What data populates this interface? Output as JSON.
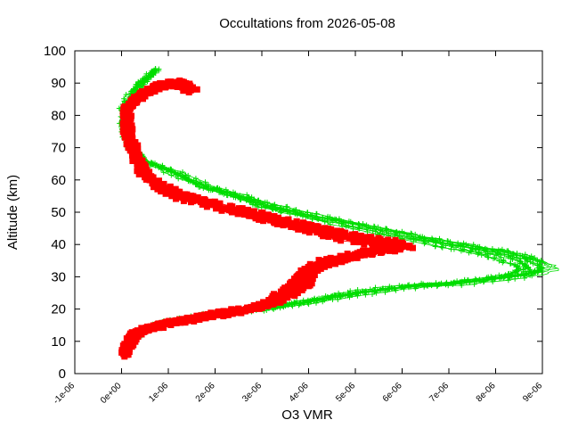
{
  "chart_data": {
    "type": "line",
    "title": "Occultations from 2026-05-08",
    "xlabel": "O3 VMR",
    "ylabel": "Altitude (km)",
    "xlim": [
      -1e-06,
      9e-06
    ],
    "ylim": [
      0,
      100
    ],
    "x_ticks": [
      "-1e-06",
      "0e+00",
      "1e-06",
      "2e-06",
      "3e-06",
      "4e-06",
      "5e-06",
      "6e-06",
      "7e-06",
      "8e-06",
      "9e-06"
    ],
    "y_ticks": [
      "0",
      "10",
      "20",
      "30",
      "40",
      "50",
      "60",
      "70",
      "80",
      "90",
      "100"
    ],
    "grid": false,
    "series": [
      {
        "color": "#00dd00",
        "marker": "plus",
        "profile": [
          [
            7e-07,
            94
          ],
          [
            4e-07,
            90
          ],
          [
            2e-07,
            86
          ],
          [
            5e-08,
            82
          ],
          [
            5e-08,
            78
          ],
          [
            1e-07,
            74
          ],
          [
            2e-07,
            70
          ],
          [
            5e-07,
            66
          ],
          [
            1.2e-06,
            62
          ],
          [
            1.8e-06,
            58
          ],
          [
            2.5e-06,
            55
          ],
          [
            3.1e-06,
            52
          ],
          [
            4e-06,
            49
          ],
          [
            5e-06,
            46
          ],
          [
            6e-06,
            43
          ],
          [
            7e-06,
            40
          ],
          [
            7.8e-06,
            38
          ],
          [
            8.4e-06,
            36
          ],
          [
            8.8e-06,
            34
          ],
          [
            8.9e-06,
            32.5
          ],
          [
            8.6e-06,
            31
          ],
          [
            7.9e-06,
            29.5
          ],
          [
            7e-06,
            28
          ],
          [
            6e-06,
            27
          ],
          [
            5.2e-06,
            25.5
          ],
          [
            4.6e-06,
            24
          ],
          [
            4e-06,
            22.5
          ],
          [
            3.4e-06,
            21
          ],
          [
            2.8e-06,
            20
          ],
          [
            2e-06,
            18.5
          ],
          [
            1.3e-06,
            17
          ],
          [
            8e-07,
            15.5
          ],
          [
            4e-07,
            13
          ],
          [
            2e-07,
            10
          ],
          [
            1e-07,
            7
          ]
        ],
        "profile_count": 10
      },
      {
        "color": "#ff0000",
        "marker": "square",
        "profile": [
          [
            1.5e-06,
            88
          ],
          [
            1.2e-06,
            90
          ],
          [
            8e-07,
            89
          ],
          [
            4e-07,
            86
          ],
          [
            1.5e-07,
            82
          ],
          [
            1e-07,
            78
          ],
          [
            1.5e-07,
            74
          ],
          [
            2.5e-07,
            70
          ],
          [
            3.5e-07,
            66
          ],
          [
            5e-07,
            62
          ],
          [
            8e-07,
            58
          ],
          [
            1.3e-06,
            55
          ],
          [
            1.9e-06,
            52.5
          ],
          [
            2.6e-06,
            50
          ],
          [
            3.2e-06,
            48
          ],
          [
            3.8e-06,
            46
          ],
          [
            4.4e-06,
            44
          ],
          [
            5e-06,
            42
          ],
          [
            5.7e-06,
            40.5
          ],
          [
            6e-06,
            39
          ],
          [
            5.2e-06,
            37
          ],
          [
            4.6e-06,
            35
          ],
          [
            4.2e-06,
            33
          ],
          [
            4e-06,
            31
          ],
          [
            3.9e-06,
            29
          ],
          [
            3.8e-06,
            27
          ],
          [
            3.6e-06,
            25
          ],
          [
            3.3e-06,
            22
          ],
          [
            2.8e-06,
            20
          ],
          [
            2.2e-06,
            18.5
          ],
          [
            1.6e-06,
            17
          ],
          [
            1e-06,
            15.5
          ],
          [
            6e-07,
            14
          ],
          [
            3e-07,
            12
          ],
          [
            1.5e-07,
            9
          ],
          [
            5e-08,
            6
          ]
        ],
        "profile_count": 10
      }
    ]
  }
}
